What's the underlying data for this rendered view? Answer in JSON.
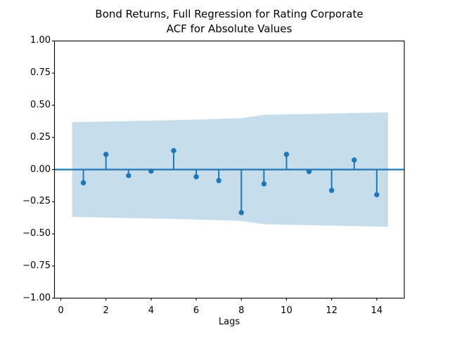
{
  "figure": {
    "title_line1": "Bond Returns, Full Regression for Rating Corporate",
    "title_line2": "ACF for Absolute Values",
    "xlabel": "Lags"
  },
  "chart_data": {
    "type": "stem",
    "subtype": "autocorrelation-function",
    "title": "Bond Returns, Full Regression for Rating Corporate\nACF for Absolute Values",
    "xlabel": "Lags",
    "ylabel": "",
    "xlim": [
      -0.28,
      15.22
    ],
    "ylim": [
      -1.0,
      1.0
    ],
    "grid": false,
    "legend": null,
    "x_ticks": [
      0,
      2,
      4,
      6,
      8,
      10,
      12,
      14
    ],
    "x_tick_labels": [
      "0",
      "2",
      "4",
      "6",
      "8",
      "10",
      "12",
      "14"
    ],
    "y_ticks": [
      1.0,
      0.75,
      0.5,
      0.25,
      0.0,
      -0.25,
      -0.5,
      -0.75,
      -1.0
    ],
    "y_tick_labels": [
      "1.00",
      "0.75",
      "0.50",
      "0.25",
      "0.00",
      "−0.25",
      "−0.50",
      "−0.75",
      "−1.00"
    ],
    "lags": [
      1,
      2,
      3,
      4,
      5,
      6,
      7,
      8,
      9,
      10,
      11,
      12,
      13,
      14
    ],
    "acf_values": [
      -0.103,
      0.118,
      -0.047,
      -0.012,
      0.147,
      -0.056,
      -0.086,
      -0.335,
      -0.111,
      0.118,
      -0.015,
      -0.162,
      0.074,
      -0.196
    ],
    "zero_line_y": 0.0,
    "confidence_band": {
      "x": [
        0.5,
        1,
        2,
        3,
        4,
        5,
        6,
        7,
        8,
        9,
        10,
        11,
        12,
        13,
        14,
        14.5
      ],
      "upper": [
        0.368,
        0.37,
        0.373,
        0.377,
        0.381,
        0.384,
        0.389,
        0.394,
        0.4,
        0.425,
        0.429,
        0.432,
        0.436,
        0.44,
        0.443,
        0.445
      ],
      "lower": [
        -0.368,
        -0.37,
        -0.373,
        -0.377,
        -0.381,
        -0.384,
        -0.389,
        -0.394,
        -0.4,
        -0.425,
        -0.429,
        -0.432,
        -0.436,
        -0.44,
        -0.443,
        -0.445
      ]
    },
    "colors": {
      "stem": "#1f77b4",
      "marker": "#1f77b4",
      "zero_line": "#1f77b4",
      "band": "rgba(31,119,180,0.25)",
      "axis": "#000000",
      "background": "#ffffff"
    }
  }
}
